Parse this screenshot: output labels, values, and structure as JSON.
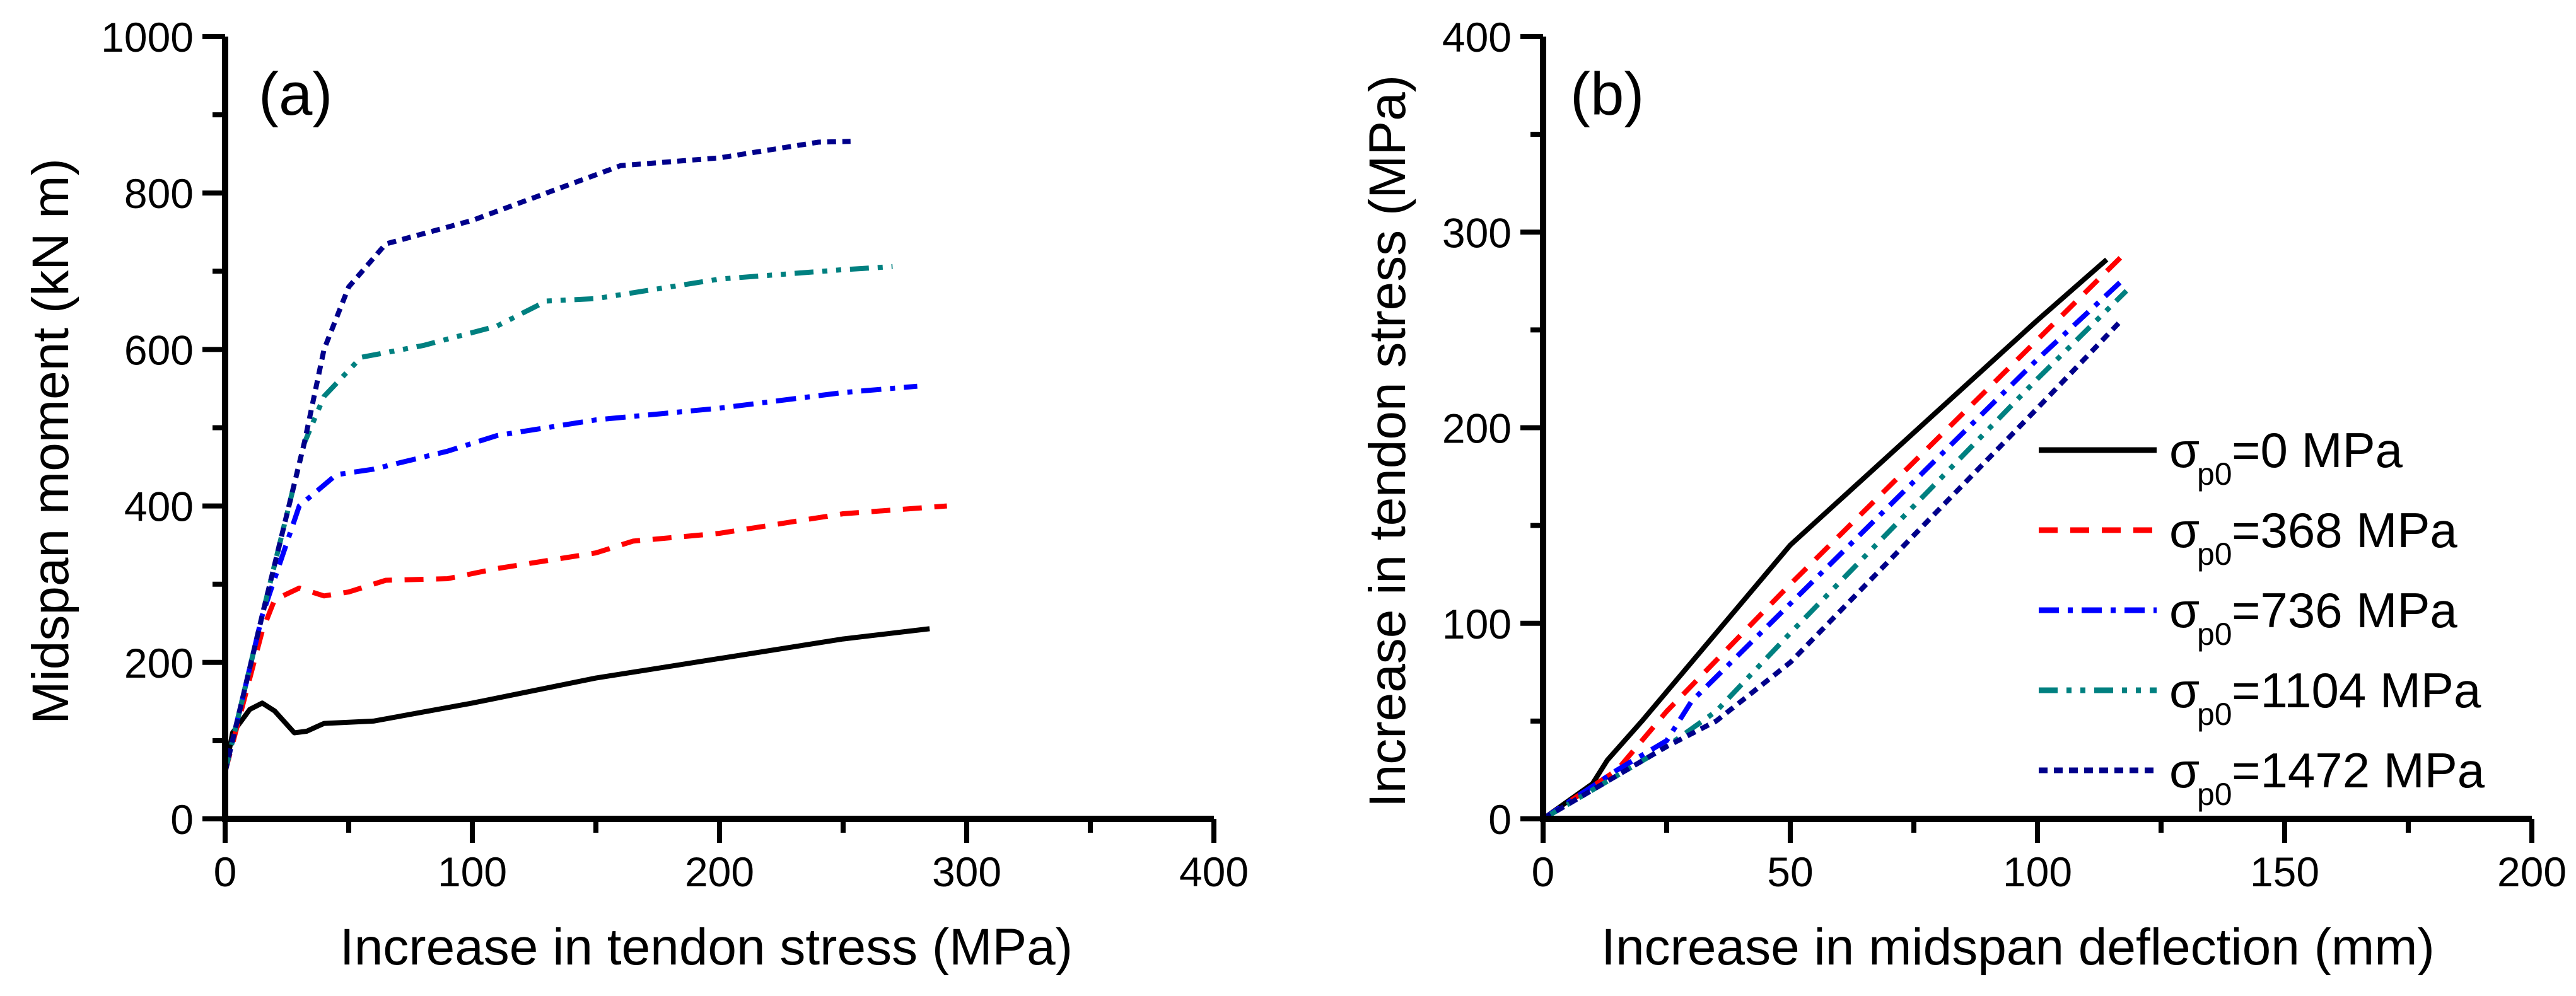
{
  "chart_data": [
    {
      "type": "line",
      "panel_label": "(a)",
      "title": "",
      "xlabel": "Increase in tendon stress (MPa)",
      "ylabel": "Midspan moment (kN m)",
      "xlim": [
        0,
        400
      ],
      "ylim": [
        0,
        1000
      ],
      "xticks": [
        0,
        100,
        200,
        300,
        400
      ],
      "yticks": [
        0,
        200,
        400,
        600,
        800,
        1000
      ],
      "x_minor_step": 50,
      "y_minor_step": 100,
      "grid": false,
      "series": [
        {
          "name": "σp0=0 MPa",
          "color": "#000000",
          "style": "solid",
          "x": [
            0,
            3,
            10,
            15,
            20,
            28,
            33,
            40,
            60,
            100,
            150,
            200,
            250,
            285
          ],
          "y": [
            60,
            110,
            140,
            148,
            138,
            110,
            112,
            122,
            125,
            148,
            180,
            205,
            230,
            243
          ]
        },
        {
          "name": "σp0=368 MPa",
          "color": "#ff0000",
          "style": "dash",
          "x": [
            0,
            15,
            20,
            30,
            40,
            50,
            65,
            90,
            110,
            150,
            165,
            200,
            250,
            292
          ],
          "y": [
            60,
            240,
            280,
            295,
            285,
            290,
            305,
            307,
            320,
            340,
            355,
            365,
            390,
            400
          ]
        },
        {
          "name": "σp0=736 MPa",
          "color": "#0000ff",
          "style": "dashdot",
          "x": [
            0,
            15,
            30,
            45,
            60,
            90,
            110,
            150,
            200,
            250,
            280
          ],
          "y": [
            60,
            260,
            400,
            440,
            447,
            470,
            490,
            510,
            525,
            545,
            553
          ]
        },
        {
          "name": "σp0=1104 MPa",
          "color": "#008080",
          "style": "dashdotdot",
          "x": [
            0,
            15,
            32,
            40,
            55,
            80,
            110,
            130,
            150,
            200,
            250,
            270
          ],
          "y": [
            60,
            260,
            480,
            540,
            590,
            605,
            630,
            662,
            665,
            690,
            702,
            706
          ]
        },
        {
          "name": "σp0=1472 MPa",
          "color": "#00008b",
          "style": "shortdash",
          "x": [
            0,
            15,
            32,
            40,
            50,
            65,
            100,
            130,
            160,
            200,
            240,
            253
          ],
          "y": [
            60,
            260,
            480,
            600,
            680,
            735,
            765,
            800,
            835,
            845,
            865,
            866
          ]
        }
      ]
    },
    {
      "type": "line",
      "panel_label": "(b)",
      "title": "",
      "xlabel": "Increase in midspan deflection (mm)",
      "ylabel": "Increase in tendon stress (MPa)",
      "xlim": [
        0,
        200
      ],
      "ylim": [
        0,
        400
      ],
      "xticks": [
        0,
        50,
        100,
        150,
        200
      ],
      "yticks": [
        0,
        100,
        200,
        300,
        400
      ],
      "x_minor_step": 25,
      "y_minor_step": 50,
      "grid": false,
      "legend_position": "center-right",
      "series": [
        {
          "name": "σp0=0 MPa",
          "color": "#000000",
          "style": "solid",
          "x": [
            0,
            10,
            13,
            20,
            50,
            100,
            114
          ],
          "y": [
            0,
            18,
            30,
            50,
            140,
            255,
            286
          ]
        },
        {
          "name": "σp0=368 MPa",
          "color": "#ff0000",
          "style": "dash",
          "x": [
            0,
            15,
            25,
            50,
            100,
            118
          ],
          "y": [
            0,
            25,
            55,
            120,
            245,
            290
          ]
        },
        {
          "name": "σp0=736 MPa",
          "color": "#0000ff",
          "style": "dashdot",
          "x": [
            0,
            15,
            25,
            30,
            50,
            100,
            117
          ],
          "y": [
            0,
            25,
            40,
            60,
            110,
            235,
            275
          ]
        },
        {
          "name": "σp0=1104 MPa",
          "color": "#008080",
          "style": "dashdotdot",
          "x": [
            0,
            25,
            35,
            50,
            100,
            118
          ],
          "y": [
            0,
            37,
            55,
            95,
            225,
            270
          ]
        },
        {
          "name": "σp0=1472 MPa",
          "color": "#00008b",
          "style": "shortdash",
          "x": [
            0,
            25,
            35,
            50,
            100,
            117
          ],
          "y": [
            0,
            37,
            50,
            80,
            210,
            255
          ]
        }
      ]
    }
  ],
  "legend": {
    "items": [
      {
        "symbol": "σ",
        "sub": "p0",
        "value": "=0 MPa"
      },
      {
        "symbol": "σ",
        "sub": "p0",
        "value": "=368 MPa"
      },
      {
        "symbol": "σ",
        "sub": "p0",
        "value": "=736 MPa"
      },
      {
        "symbol": "σ",
        "sub": "p0",
        "value": "=1104 MPa"
      },
      {
        "symbol": "σ",
        "sub": "p0",
        "value": "=1472 MPa"
      }
    ]
  }
}
